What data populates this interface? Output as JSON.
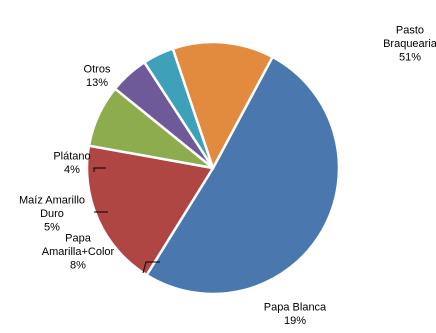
{
  "chart_data": {
    "type": "pie",
    "title": "",
    "start_angle_deg": -61.8,
    "direction": "clockwise",
    "slices": [
      {
        "label": "Pasto Braquearia",
        "label_lines": [
          "Pasto",
          "Braquearia"
        ],
        "value": 51,
        "value_text": "51%",
        "color": "#4A78AE"
      },
      {
        "label": "Papa Blanca",
        "label_lines": [
          "Papa Blanca"
        ],
        "value": 19,
        "value_text": "19%",
        "color": "#B04643"
      },
      {
        "label": "Papa Amarilla+Color",
        "label_lines": [
          "Papa",
          "Amarilla+Color"
        ],
        "value": 8,
        "value_text": "8%",
        "color": "#8CAC4E"
      },
      {
        "label": "Maíz Amarillo Duro",
        "label_lines": [
          "Maíz Amarillo",
          "Duro"
        ],
        "value": 5,
        "value_text": "5%",
        "color": "#6E5A98"
      },
      {
        "label": "Plátano",
        "label_lines": [
          "Plátano"
        ],
        "value": 4,
        "value_text": "4%",
        "color": "#3FA0B9"
      },
      {
        "label": "Otros",
        "label_lines": [
          "Otros"
        ],
        "value": 13,
        "value_text": "13%",
        "color": "#E28A3D"
      }
    ]
  }
}
